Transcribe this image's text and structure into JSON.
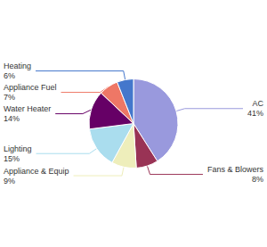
{
  "chart_data": {
    "type": "pie",
    "categories": [
      "AC",
      "Fans & Blowers",
      "Appliance & Equip",
      "Lighting",
      "Water Heater",
      "Appliance Fuel",
      "Heating"
    ],
    "values": [
      41,
      8,
      9,
      15,
      14,
      7,
      6
    ],
    "value_labels": [
      "41%",
      "8%",
      "9%",
      "15%",
      "14%",
      "7%",
      "6%"
    ],
    "colors": [
      "#9999dd",
      "#993355",
      "#eeeebb",
      "#aaddee",
      "#660066",
      "#ee7766",
      "#4477cc"
    ],
    "data_labels": true
  }
}
